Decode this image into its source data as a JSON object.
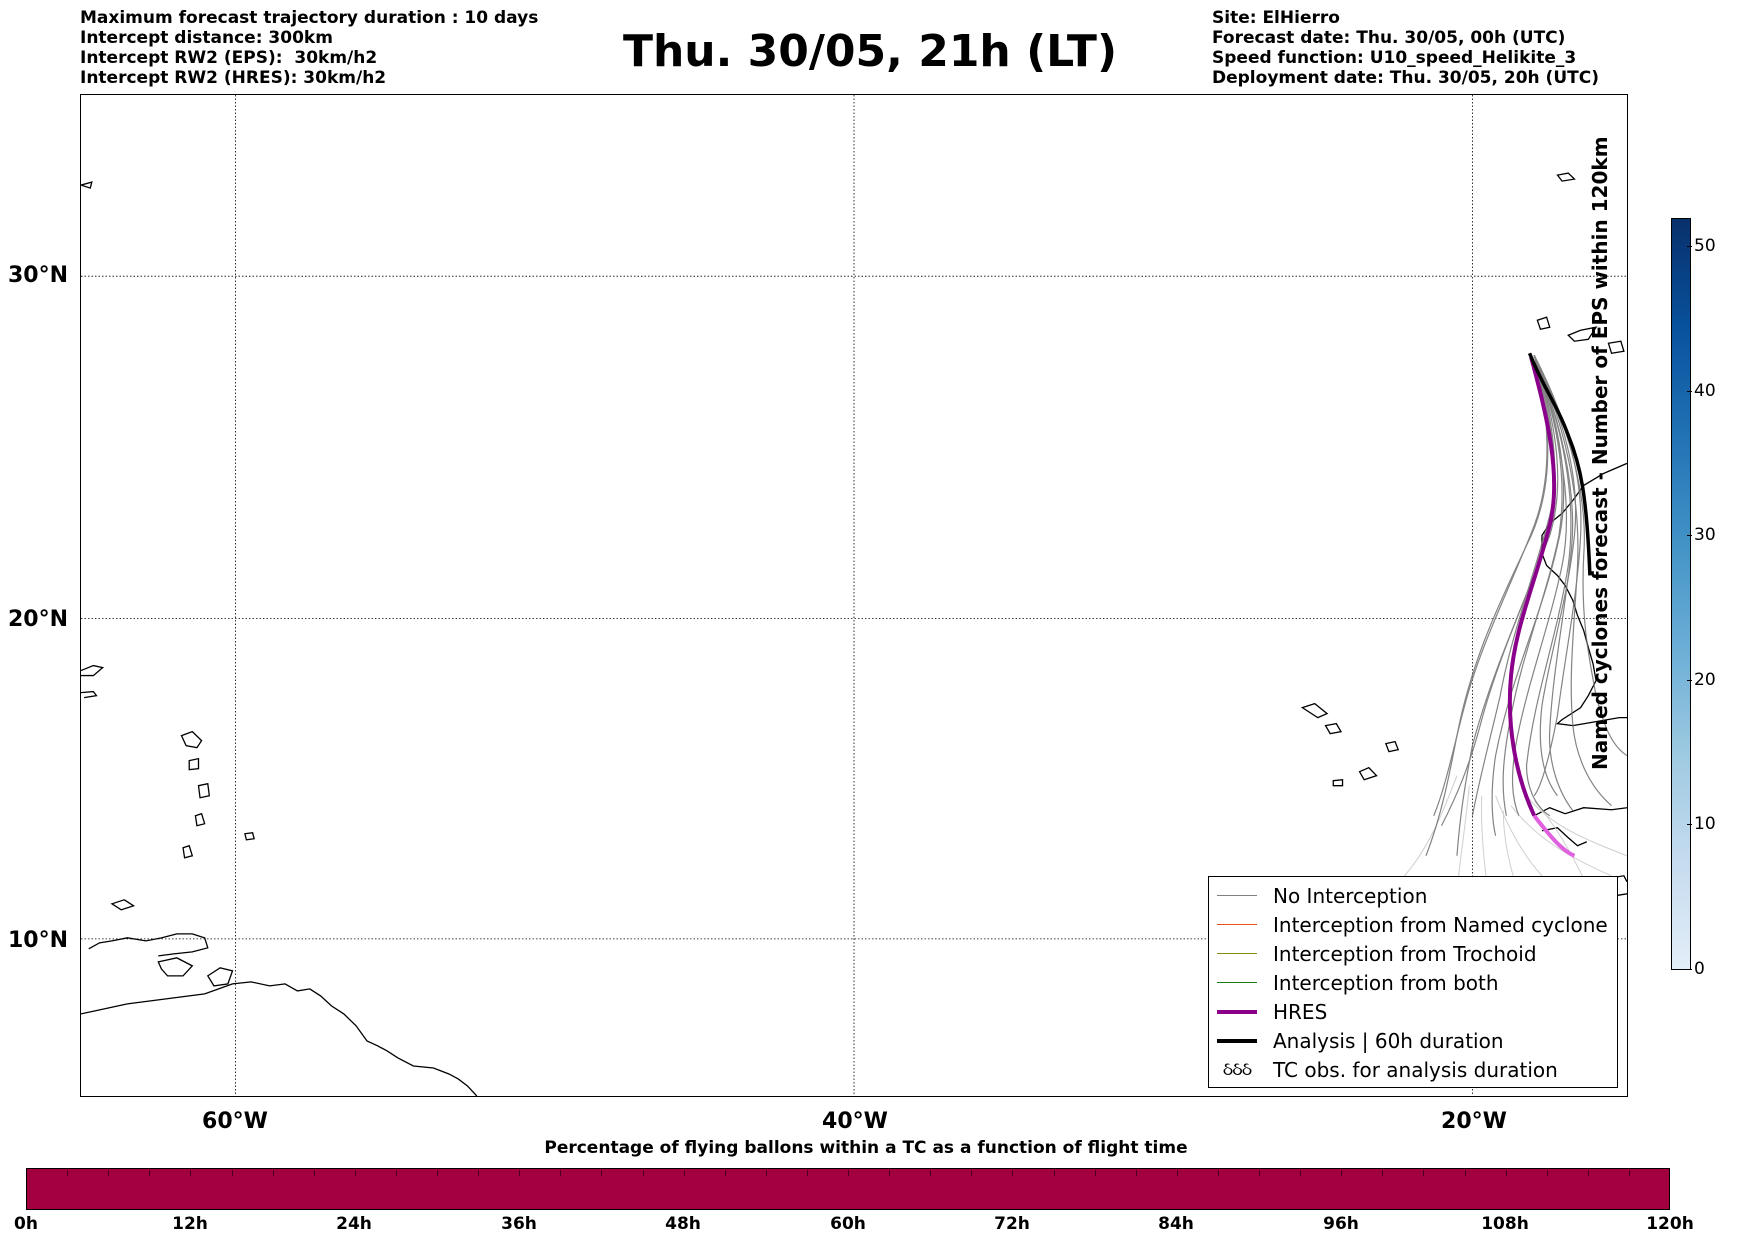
{
  "header": {
    "left_lines": [
      "Maximum forecast trajectory duration : 10 days",
      "Intercept distance: 300km",
      "Intercept RW2 (EPS):  30km/h2",
      "Intercept RW2 (HRES): 30km/h2"
    ],
    "title": "Thu. 30/05, 21h (LT)",
    "right_lines": [
      "Site: ElHierro",
      "Forecast date: Thu. 30/05, 00h (UTC)",
      "Speed function: U10_speed_Helikite_3",
      "Deployment date: Thu. 30/05, 20h (UTC)"
    ]
  },
  "map": {
    "lat_labels": [
      "30°N",
      "20°N",
      "10°N"
    ],
    "lon_labels": [
      "60°W",
      "40°W",
      "20°W"
    ],
    "colors": {
      "coastline": "#000000",
      "no_interception": "#6e6e6e",
      "trajectory_tail": "#cfcfcf",
      "hres": "#8b008b",
      "hres_tail": "#e060e0",
      "analysis": "#000000"
    }
  },
  "legend": {
    "items": [
      {
        "label": "No Interception",
        "color": "#808080",
        "width": 1.5,
        "kind": "line"
      },
      {
        "label": "Interception from Named cyclone",
        "color": "#e8501a",
        "width": 1.5,
        "kind": "line"
      },
      {
        "label": "Interception from Trochoid",
        "color": "#8a8a10",
        "width": 1.5,
        "kind": "line"
      },
      {
        "label": "Interception from both",
        "color": "#1a7a1a",
        "width": 1.5,
        "kind": "line"
      },
      {
        "label": "HRES",
        "color": "#8b008b",
        "width": 4,
        "kind": "line"
      },
      {
        "label": "Analysis | 60h duration",
        "color": "#000000",
        "width": 4,
        "kind": "line"
      },
      {
        "label": "TC obs. for analysis duration",
        "glyph": "ઠઠઠ",
        "kind": "glyph"
      }
    ]
  },
  "colorbar_vertical": {
    "label": "Named cyclones forecast - Number of EPS within 120km",
    "ticks": [
      "0",
      "10",
      "20",
      "30",
      "40",
      "50"
    ],
    "range": [
      0,
      52
    ]
  },
  "colorbar_horizontal": {
    "title": "Percentage of flying ballons within a TC as a function of flight time",
    "ticks": [
      "0h",
      "12h",
      "24h",
      "36h",
      "48h",
      "60h",
      "72h",
      "84h",
      "96h",
      "108h",
      "120h"
    ],
    "color": "#a3003f"
  }
}
